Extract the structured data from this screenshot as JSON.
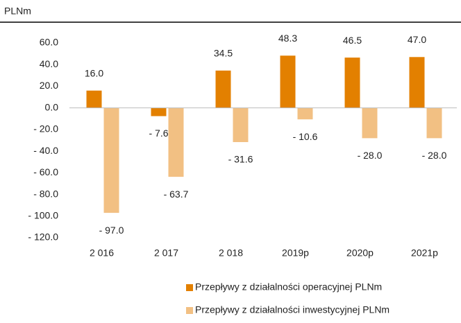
{
  "chart_data": {
    "type": "bar",
    "unit_label": "PLNm",
    "categories": [
      "2 016",
      "2 017",
      "2 018",
      "2019p",
      "2020p",
      "2021p"
    ],
    "series": [
      {
        "name": "Przepływy z działalności operacyjnej PLNm",
        "color": "#e38000",
        "values": [
          16.0,
          -7.6,
          34.5,
          48.3,
          46.5,
          47.0
        ],
        "value_labels": [
          "16.0",
          "- 7.6",
          "34.5",
          "48.3",
          "46.5",
          "47.0"
        ]
      },
      {
        "name": "Przepływy z działalności inwestycyjnej PLNm",
        "color": "#f2c083",
        "values": [
          -97.0,
          -63.7,
          -31.6,
          -10.6,
          -28.0,
          -28.0
        ],
        "value_labels": [
          "- 97.0",
          "- 63.7",
          "- 31.6",
          "- 10.6",
          "- 28.0",
          "- 28.0"
        ]
      }
    ],
    "ylim": [
      -120,
      60
    ],
    "yticks": [
      {
        "value": 60,
        "label": "60.0"
      },
      {
        "value": 40,
        "label": "40.0"
      },
      {
        "value": 20,
        "label": "20.0"
      },
      {
        "value": 0,
        "label": "0.0"
      },
      {
        "value": -20,
        "label": "- 20.0"
      },
      {
        "value": -40,
        "label": "- 40.0"
      },
      {
        "value": -60,
        "label": "- 60.0"
      },
      {
        "value": -80,
        "label": "- 80.0"
      },
      {
        "value": -100,
        "label": "- 100.0"
      },
      {
        "value": -120,
        "label": "- 120.0"
      }
    ],
    "grid": false,
    "legend": "bottom"
  }
}
